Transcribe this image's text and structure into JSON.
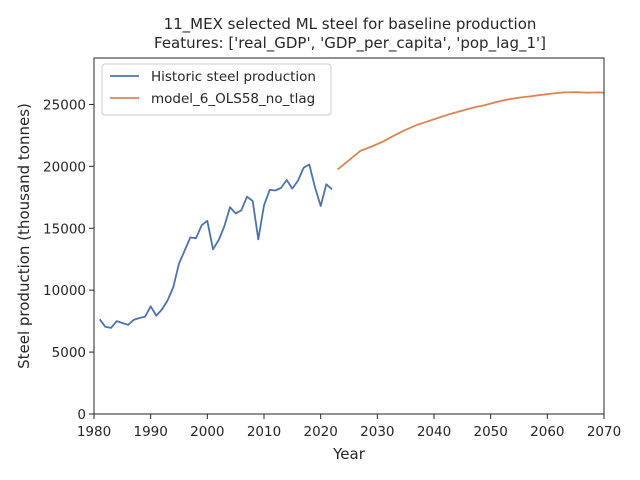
{
  "chart_data": {
    "type": "line",
    "title": "11_MEX selected ML steel for baseline production",
    "subtitle": "Features: ['real_GDP', 'GDP_per_capita', 'pop_lag_1']",
    "xlabel": "Year",
    "ylabel": "Steel production (thousand tonnes)",
    "xlim": [
      1980,
      2070
    ],
    "ylim": [
      0,
      28750
    ],
    "xticks": [
      1980,
      1990,
      2000,
      2010,
      2020,
      2030,
      2040,
      2050,
      2060,
      2070
    ],
    "yticks": [
      0,
      5000,
      10000,
      15000,
      20000,
      25000
    ],
    "grid": false,
    "legend_position": "top-left",
    "series": [
      {
        "name": "Historic steel production",
        "color": "#4c72b0",
        "x": [
          1981,
          1982,
          1983,
          1984,
          1985,
          1986,
          1987,
          1988,
          1989,
          1990,
          1991,
          1992,
          1993,
          1994,
          1995,
          1996,
          1997,
          1998,
          1999,
          2000,
          2001,
          2002,
          2003,
          2004,
          2005,
          2006,
          2007,
          2008,
          2009,
          2010,
          2011,
          2012,
          2013,
          2014,
          2015,
          2016,
          2017,
          2018,
          2019,
          2020,
          2021,
          2022
        ],
        "y": [
          7650,
          7050,
          6950,
          7500,
          7350,
          7200,
          7600,
          7750,
          7850,
          8700,
          7950,
          8450,
          9200,
          10250,
          12150,
          13200,
          14250,
          14200,
          15250,
          15600,
          13300,
          14050,
          15150,
          16700,
          16200,
          16450,
          17550,
          17200,
          14100,
          16850,
          18100,
          18050,
          18250,
          18900,
          18200,
          18850,
          19900,
          20150,
          18300,
          16800,
          18550,
          18150
        ]
      },
      {
        "name": "model_6_OLS58_no_tlag",
        "color": "#dd8452",
        "x": [
          2023,
          2025,
          2027,
          2029,
          2031,
          2033,
          2035,
          2037,
          2039,
          2041,
          2043,
          2045,
          2047,
          2049,
          2051,
          2053,
          2055,
          2057,
          2059,
          2061,
          2063,
          2065,
          2067,
          2069,
          2070
        ],
        "y": [
          19750,
          20500,
          21250,
          21600,
          22000,
          22500,
          22950,
          23350,
          23650,
          23950,
          24250,
          24500,
          24750,
          24950,
          25200,
          25400,
          25550,
          25650,
          25780,
          25880,
          25970,
          26000,
          25950,
          25970,
          25950
        ]
      }
    ]
  }
}
